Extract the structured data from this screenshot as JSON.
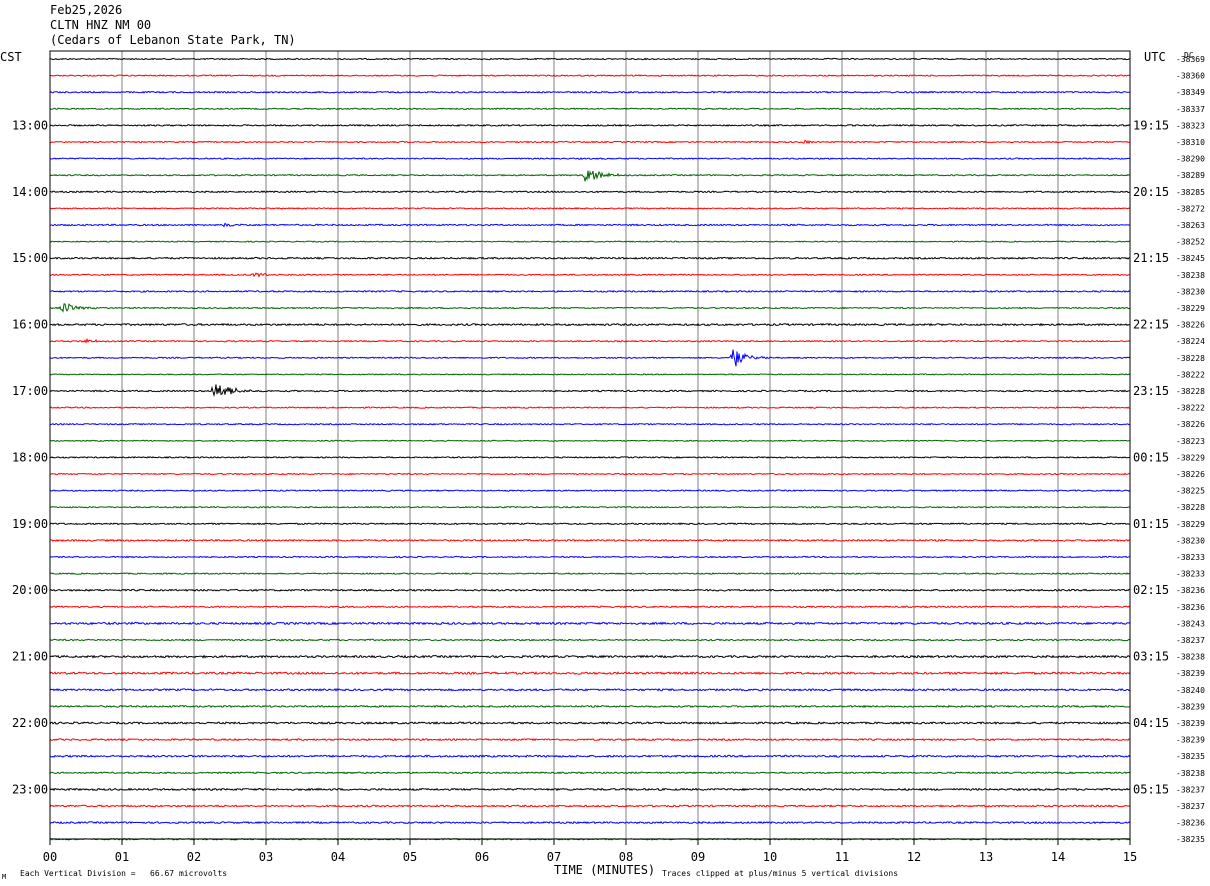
{
  "header": {
    "date": "Feb25,2026",
    "station": "CLTN HNZ NM 00",
    "location": "(Cedars of Lebanon State Park, TN)"
  },
  "labels": {
    "left_zone": "CST",
    "right_zone": "UTC",
    "dc": "DC",
    "xlabel": "TIME (MINUTES)",
    "scale_note": "Each Vertical Division =   66.67 microvolts",
    "clip_note": "Traces clipped at plus/minus 5 vertical divisions",
    "corner_mark": "M"
  },
  "colors": {
    "trace_cycle": [
      "#000000",
      "#ff0000",
      "#0000ff",
      "#006400"
    ],
    "grid": "#808080",
    "frame": "#000000"
  },
  "chart_data": {
    "type": "line",
    "subtype": "helicorder",
    "xlabel": "TIME (MINUTES)",
    "xlim": [
      0,
      15
    ],
    "x_ticks": [
      "00",
      "01",
      "02",
      "03",
      "04",
      "05",
      "06",
      "07",
      "08",
      "09",
      "10",
      "11",
      "12",
      "13",
      "14",
      "15"
    ],
    "rows_per_hour": 4,
    "left_hour_labels": [
      "13:00",
      "14:00",
      "15:00",
      "16:00",
      "17:00",
      "18:00",
      "19:00",
      "20:00",
      "21:00",
      "22:00",
      "23:00"
    ],
    "right_hour_labels": [
      "19:15",
      "20:15",
      "21:15",
      "22:15",
      "23:15",
      "00:15",
      "01:15",
      "02:15",
      "03:15",
      "04:15",
      "05:15"
    ],
    "dc_values": [
      "-38369",
      "-38360",
      "-38349",
      "-38337",
      "-38323",
      "-38310",
      "-38290",
      "-38289",
      "-38285",
      "-38272",
      "-38263",
      "-38252",
      "-38245",
      "-38238",
      "-38230",
      "-38229",
      "-38226",
      "-38224",
      "-38228",
      "-38222",
      "-38228",
      "-38222",
      "-38226",
      "-38223",
      "-38229",
      "-38226",
      "-38225",
      "-38228",
      "-38229",
      "-38230",
      "-38233",
      "-38233",
      "-38236",
      "-38236",
      "-38243",
      "-38237",
      "-38238",
      "-38239",
      "-38240",
      "-38239",
      "-38239",
      "-38239",
      "-38235",
      "-38238",
      "-38237",
      "-38237",
      "-38236",
      "-38235"
    ],
    "traces": [
      {
        "noise": 0.6
      },
      {
        "noise": 0.6
      },
      {
        "noise": 0.7
      },
      {
        "noise": 0.6
      },
      {
        "noise": 0.7
      },
      {
        "noise": 0.6,
        "events": [
          {
            "minute": 10.45,
            "amp": 2,
            "dur": 0.5
          }
        ]
      },
      {
        "noise": 0.6
      },
      {
        "noise": 0.6,
        "events": [
          {
            "minute": 7.4,
            "amp": 8,
            "dur": 0.8
          }
        ]
      },
      {
        "noise": 0.7
      },
      {
        "noise": 0.6
      },
      {
        "noise": 0.7,
        "events": [
          {
            "minute": 2.4,
            "amp": 2,
            "dur": 0.6
          }
        ]
      },
      {
        "noise": 0.5
      },
      {
        "noise": 0.8
      },
      {
        "noise": 0.6,
        "events": [
          {
            "minute": 2.8,
            "amp": 3,
            "dur": 0.7
          }
        ]
      },
      {
        "noise": 0.7
      },
      {
        "noise": 0.6,
        "events": [
          {
            "minute": 0.15,
            "amp": 6,
            "dur": 0.6
          }
        ]
      },
      {
        "noise": 0.9
      },
      {
        "noise": 0.6,
        "events": [
          {
            "minute": 0.45,
            "amp": 2,
            "dur": 0.7
          }
        ]
      },
      {
        "noise": 0.6,
        "events": [
          {
            "minute": 9.45,
            "amp": 12,
            "dur": 0.6
          }
        ]
      },
      {
        "noise": 0.5
      },
      {
        "noise": 0.7,
        "events": [
          {
            "minute": 2.25,
            "amp": 12,
            "dur": 0.7
          }
        ]
      },
      {
        "noise": 0.6
      },
      {
        "noise": 0.6
      },
      {
        "noise": 0.5
      },
      {
        "noise": 0.6
      },
      {
        "noise": 0.6
      },
      {
        "noise": 0.6
      },
      {
        "noise": 0.6
      },
      {
        "noise": 0.7
      },
      {
        "noise": 0.8
      },
      {
        "noise": 0.6
      },
      {
        "noise": 0.6
      },
      {
        "noise": 0.8
      },
      {
        "noise": 0.7
      },
      {
        "noise": 1.0
      },
      {
        "noise": 0.7
      },
      {
        "noise": 1.0
      },
      {
        "noise": 1.0
      },
      {
        "noise": 0.9
      },
      {
        "noise": 0.8
      },
      {
        "noise": 0.9
      },
      {
        "noise": 0.8
      },
      {
        "noise": 0.9
      },
      {
        "noise": 0.7
      },
      {
        "noise": 0.9
      },
      {
        "noise": 0.8
      },
      {
        "noise": 0.8
      },
      {
        "noise": 0.7
      }
    ]
  }
}
